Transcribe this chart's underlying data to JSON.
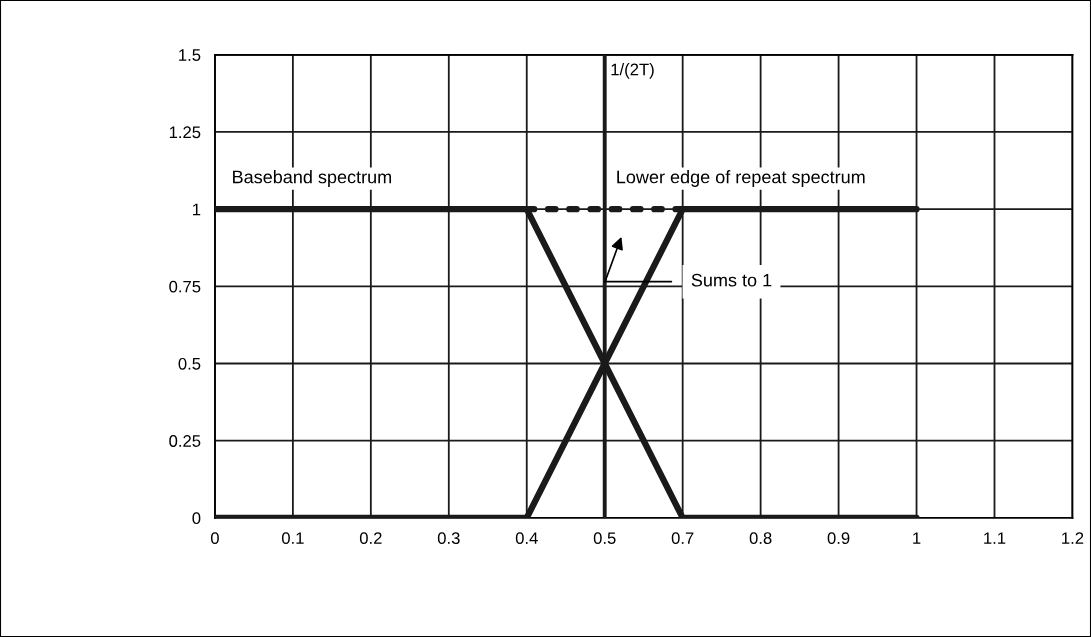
{
  "chart_data": {
    "type": "line",
    "categories": [
      "0",
      "0.1",
      "0.2",
      "0.3",
      "0.4",
      "0.5",
      "0.7",
      "0.8",
      "0.9",
      "1",
      "1.1",
      "1.2"
    ],
    "ylim": [
      0,
      1.5
    ],
    "yticks": [
      0,
      0.25,
      0.5,
      0.75,
      1,
      1.25,
      1.5
    ],
    "grid": true,
    "marker": "none",
    "series": [
      {
        "color": "#1a1a1a",
        "line_style": "dotted",
        "values": [
          null,
          null,
          null,
          null,
          1,
          1,
          1,
          null,
          null,
          null,
          null,
          null
        ]
      },
      {
        "color": "#1a1a1a",
        "line_style": "solid",
        "values": [
          1,
          1,
          1,
          1,
          1,
          0.5,
          0,
          0,
          0,
          0,
          null,
          null
        ]
      },
      {
        "color": "#1a1a1a",
        "line_style": "solid",
        "values": [
          0,
          0,
          0,
          0,
          0,
          0.5,
          1,
          1,
          1,
          1,
          null,
          null
        ]
      }
    ],
    "ref_lines": [
      {
        "axis": "x",
        "value": "0.5",
        "label": "1/(2T)",
        "color": "#1a1a1a"
      }
    ],
    "annotations": [
      {
        "text": "Baseband spectrum",
        "x": "0",
        "y": 1
      },
      {
        "text": "Lower edge of repeat spectrum",
        "x": "0.5",
        "y": 1
      },
      "Sums to 1"
    ]
  }
}
